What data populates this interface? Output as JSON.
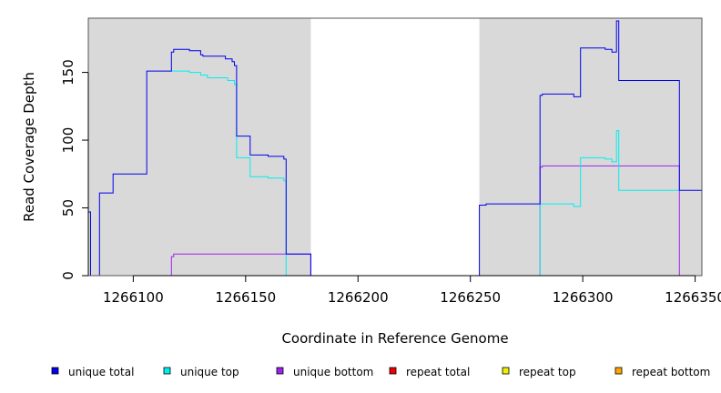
{
  "chart_data": {
    "type": "line",
    "title": "",
    "xlabel": "Coordinate in Reference Genome",
    "ylabel": "Read Coverage Depth",
    "xlim": [
      1266080,
      1266353
    ],
    "ylim": [
      0,
      190
    ],
    "x_ticks": [
      1266100,
      1266150,
      1266200,
      1266250,
      1266300,
      1266350
    ],
    "x_tick_labels": [
      "1266100",
      "1266150",
      "1266200",
      "1266250",
      "1266300",
      "1266350"
    ],
    "y_ticks": [
      0,
      50,
      100,
      150
    ],
    "y_tick_labels": [
      "0",
      "50",
      "100",
      "150"
    ],
    "shaded_regions": [
      {
        "x_start": 1266080,
        "x_end": 1266179,
        "color": "#d9d9d9"
      },
      {
        "x_start": 1266254,
        "x_end": 1266353,
        "color": "#d9d9d9"
      }
    ],
    "grid": false,
    "legend_position": "bottom",
    "series": [
      {
        "name": "unique total",
        "color": "#0000ee",
        "points": [
          [
            1266080,
            47
          ],
          [
            1266081,
            47
          ],
          [
            1266081,
            0
          ],
          [
            1266085,
            0
          ],
          [
            1266085,
            61
          ],
          [
            1266091,
            61
          ],
          [
            1266091,
            75
          ],
          [
            1266106,
            75
          ],
          [
            1266106,
            151
          ],
          [
            1266117,
            151
          ],
          [
            1266117,
            165
          ],
          [
            1266118,
            165
          ],
          [
            1266118,
            167
          ],
          [
            1266125,
            167
          ],
          [
            1266125,
            166
          ],
          [
            1266130,
            166
          ],
          [
            1266130,
            163
          ],
          [
            1266131,
            163
          ],
          [
            1266131,
            162
          ],
          [
            1266141,
            162
          ],
          [
            1266141,
            160
          ],
          [
            1266144,
            160
          ],
          [
            1266144,
            158
          ],
          [
            1266145,
            158
          ],
          [
            1266145,
            155
          ],
          [
            1266146,
            155
          ],
          [
            1266146,
            103
          ],
          [
            1266152,
            103
          ],
          [
            1266152,
            89
          ],
          [
            1266160,
            89
          ],
          [
            1266160,
            88
          ],
          [
            1266167,
            88
          ],
          [
            1266167,
            86
          ],
          [
            1266168,
            86
          ],
          [
            1266168,
            16
          ],
          [
            1266179,
            16
          ],
          [
            1266179,
            0
          ],
          [
            1266254,
            0
          ],
          [
            1266254,
            52
          ],
          [
            1266257,
            52
          ],
          [
            1266257,
            53
          ],
          [
            1266281,
            53
          ],
          [
            1266281,
            133
          ],
          [
            1266282,
            133
          ],
          [
            1266282,
            134
          ],
          [
            1266296,
            134
          ],
          [
            1266296,
            132
          ],
          [
            1266299,
            132
          ],
          [
            1266299,
            168
          ],
          [
            1266310,
            168
          ],
          [
            1266310,
            167
          ],
          [
            1266313,
            167
          ],
          [
            1266313,
            165
          ],
          [
            1266315,
            165
          ],
          [
            1266315,
            188
          ],
          [
            1266316,
            188
          ],
          [
            1266316,
            144
          ],
          [
            1266343,
            144
          ],
          [
            1266343,
            63
          ],
          [
            1266353,
            63
          ]
        ]
      },
      {
        "name": "unique top",
        "color": "#00eeee",
        "points": [
          [
            1266117,
            151
          ],
          [
            1266125,
            151
          ],
          [
            1266125,
            150
          ],
          [
            1266130,
            150
          ],
          [
            1266130,
            148
          ],
          [
            1266133,
            148
          ],
          [
            1266133,
            146
          ],
          [
            1266142,
            146
          ],
          [
            1266142,
            144
          ],
          [
            1266145,
            144
          ],
          [
            1266145,
            141
          ],
          [
            1266146,
            141
          ],
          [
            1266146,
            87
          ],
          [
            1266152,
            87
          ],
          [
            1266152,
            73
          ],
          [
            1266160,
            73
          ],
          [
            1266160,
            72
          ],
          [
            1266167,
            72
          ],
          [
            1266167,
            70
          ],
          [
            1266168,
            70
          ],
          [
            1266168,
            0
          ],
          [
            1266179,
            0
          ],
          [
            1266281,
            0
          ],
          [
            1266281,
            53
          ],
          [
            1266296,
            53
          ],
          [
            1266296,
            51
          ],
          [
            1266299,
            51
          ],
          [
            1266299,
            87
          ],
          [
            1266310,
            87
          ],
          [
            1266310,
            86
          ],
          [
            1266313,
            86
          ],
          [
            1266313,
            84
          ],
          [
            1266315,
            84
          ],
          [
            1266315,
            107
          ],
          [
            1266316,
            107
          ],
          [
            1266316,
            63
          ],
          [
            1266343,
            63
          ]
        ]
      },
      {
        "name": "unique bottom",
        "color": "#a020f0",
        "points": [
          [
            1266080,
            0
          ],
          [
            1266117,
            0
          ],
          [
            1266117,
            14
          ],
          [
            1266118,
            14
          ],
          [
            1266118,
            16
          ],
          [
            1266168,
            16
          ],
          [
            1266168,
            16
          ],
          [
            1266179,
            16
          ],
          [
            1266179,
            0
          ],
          [
            1266281,
            0
          ],
          [
            1266281,
            80
          ],
          [
            1266282,
            80
          ],
          [
            1266282,
            81
          ],
          [
            1266343,
            81
          ],
          [
            1266343,
            0
          ],
          [
            1266353,
            0
          ]
        ]
      },
      {
        "name": "repeat total",
        "color": "#ee0000",
        "points": [
          [
            1266080,
            0
          ],
          [
            1266353,
            0
          ]
        ]
      },
      {
        "name": "repeat top",
        "color": "#eeee00",
        "points": [
          [
            1266080,
            0
          ],
          [
            1266353,
            0
          ]
        ]
      },
      {
        "name": "repeat bottom",
        "color": "#ffa500",
        "points": [
          [
            1266080,
            0
          ],
          [
            1266353,
            0
          ]
        ]
      }
    ]
  }
}
